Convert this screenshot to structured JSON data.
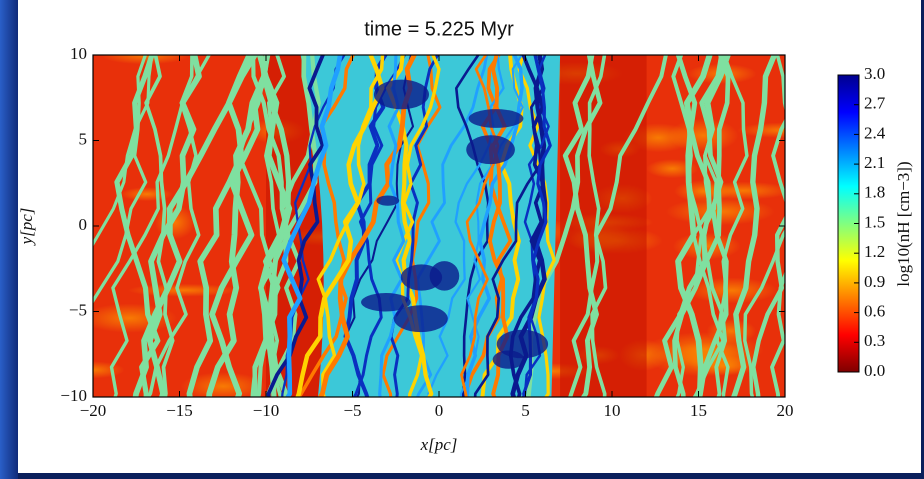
{
  "chart_data": {
    "type": "heatmap",
    "title": "time = 5.225 Myr",
    "x_label": "x[pc]",
    "y_label": "y[pc]",
    "xlim": [
      -20,
      20
    ],
    "ylim": [
      -10,
      10
    ],
    "xticks": [
      {
        "value": -20,
        "label": "−20"
      },
      {
        "value": -15,
        "label": "−15"
      },
      {
        "value": -10,
        "label": "−10"
      },
      {
        "value": -5,
        "label": "−5"
      },
      0,
      5,
      10,
      15,
      20
    ],
    "yticks": [
      {
        "value": -10,
        "label": "−10"
      },
      {
        "value": -5,
        "label": "−5"
      },
      0,
      5,
      10
    ],
    "colorbar": {
      "label": "log10(nH [cm−3])",
      "lim": [
        0,
        3
      ],
      "ticks": [
        {
          "value": 0,
          "label": "0.0"
        },
        0.3,
        0.6,
        0.9,
        1.2,
        1.5,
        1.8,
        2.1,
        2.4,
        2.7,
        {
          "value": 3,
          "label": "3.0"
        }
      ],
      "colors": [
        "#7f0000",
        "#ff0000",
        "#ff8000",
        "#ffff00",
        "#80ff80",
        "#00ffff",
        "#0080ff",
        "#0000ff",
        "#00008f"
      ]
    }
  }
}
